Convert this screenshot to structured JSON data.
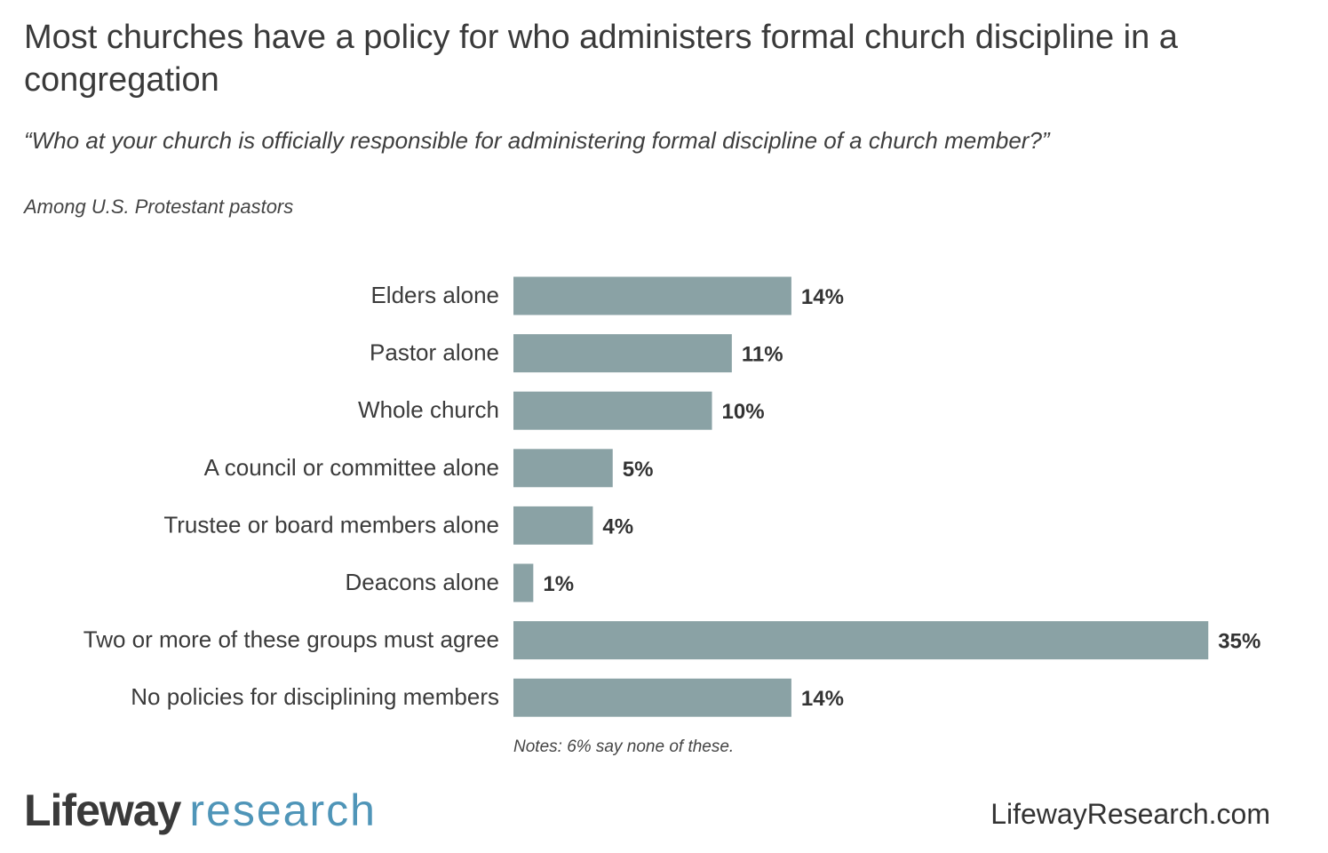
{
  "header": {
    "title": "Most churches have a policy for who administers formal church discipline in a congregation",
    "subtitle": "“Who at your church is officially responsible for administering formal discipline of a church member?”",
    "base": "Among U.S. Protestant pastors"
  },
  "chart_data": {
    "type": "bar",
    "orientation": "horizontal",
    "categories": [
      "Elders alone",
      "Pastor alone",
      "Whole church",
      "A council or committee alone",
      "Trustee or board members alone",
      "Deacons alone",
      "Two or more of these groups must agree",
      "No policies for disciplining members"
    ],
    "values": [
      14,
      11,
      10,
      5,
      4,
      1,
      35,
      14
    ],
    "value_labels": [
      "14%",
      "11%",
      "10%",
      "5%",
      "4%",
      "1%",
      "35%",
      "14%"
    ],
    "unit": "%",
    "bar_color": "#8aa2a5",
    "grid": false,
    "legend": "none"
  },
  "notes": "Notes: 6% say none of these.",
  "footer": {
    "logo_part1": "Lifeway",
    "logo_part2": "research",
    "logo_part2_color": "#4f95b8",
    "website": "LifewayResearch.com"
  }
}
